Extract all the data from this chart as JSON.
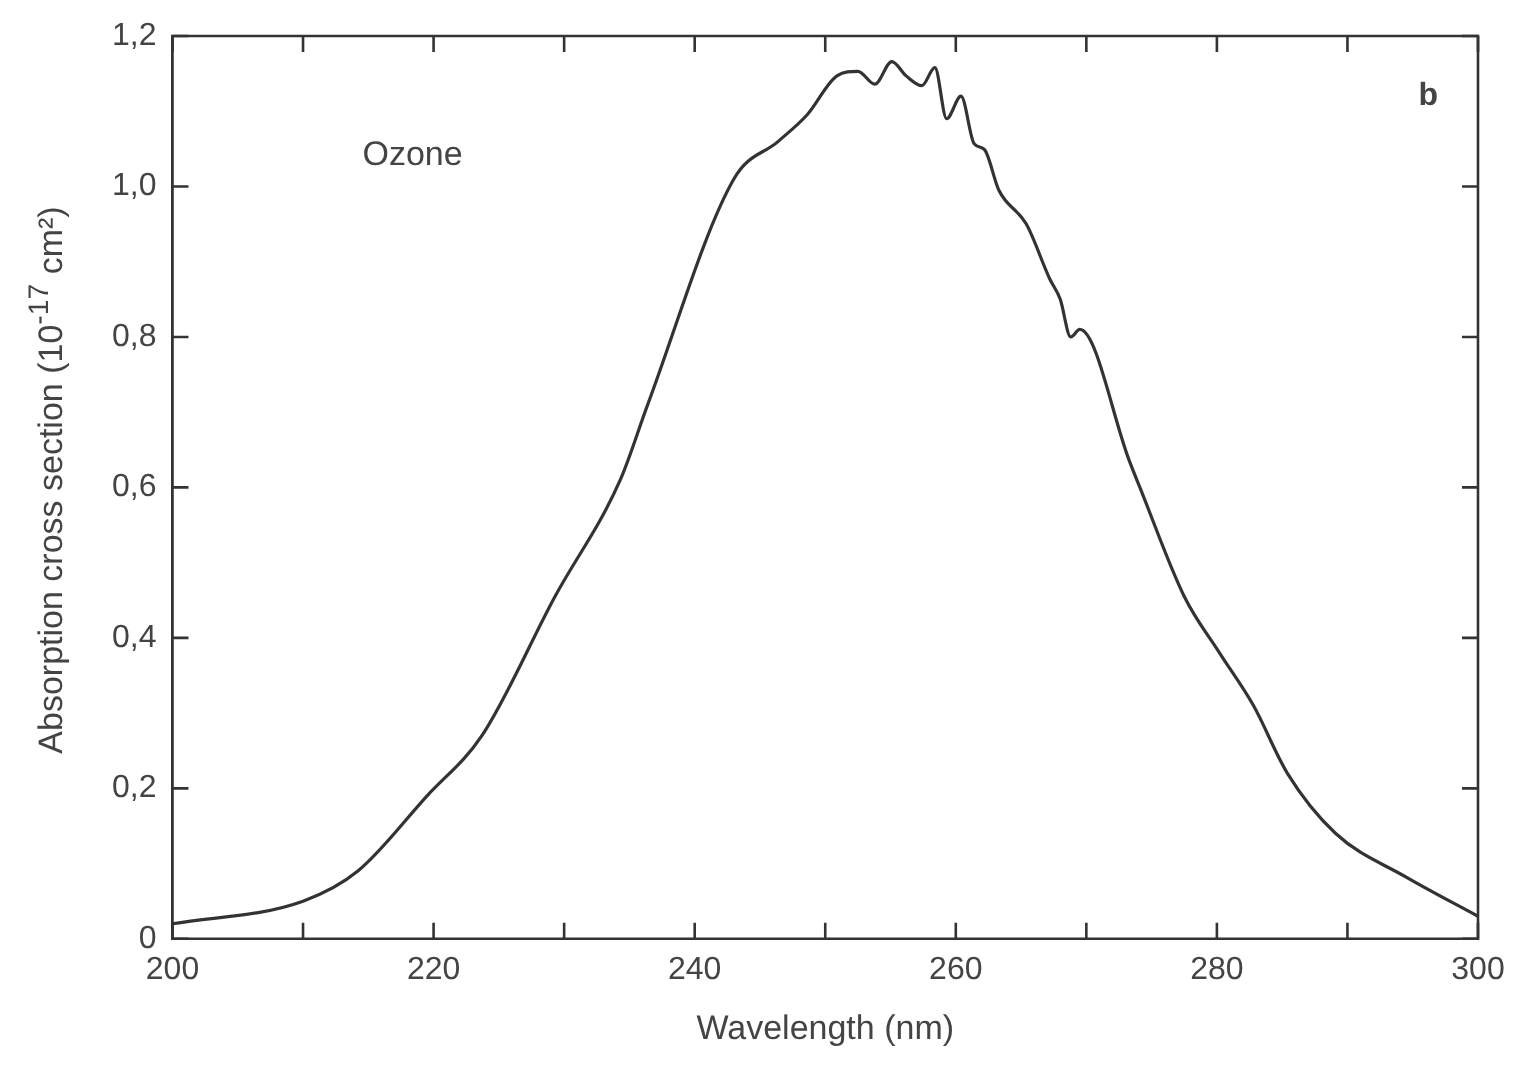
{
  "chart_data": {
    "type": "line",
    "xlabel": "Wavelength (nm)",
    "ylabel": "Absorption cross  section (10$^{-17}$ cm²)",
    "annotations": [
      "Ozone",
      "b"
    ],
    "series": [
      {
        "color": "#333333",
        "x": [
          200,
          210,
          214.2,
          219.5,
          223.7,
          229.3,
          234.3,
          236.4,
          243,
          246.4,
          248.6,
          250.9,
          252.5,
          253.8,
          255.1,
          256.2,
          257.4,
          258.4,
          259.3,
          260.4,
          261.4,
          262.2,
          263.3,
          265.4,
          267.2,
          268,
          268.8,
          269.5,
          273.3,
          274.1,
          277.5,
          280.2,
          282.8,
          285.4,
          289.1,
          294.5,
          300
        ],
        "values": [
          0.02,
          0.05,
          0.09,
          0.19,
          0.27,
          0.455,
          0.61,
          0.71,
          1.01,
          1.06,
          1.095,
          1.147,
          1.153,
          1.136,
          1.166,
          1.147,
          1.134,
          1.158,
          1.09,
          1.12,
          1.057,
          1.049,
          0.995,
          0.95,
          0.877,
          0.85,
          0.8,
          0.81,
          0.635,
          0.6,
          0.455,
          0.38,
          0.31,
          0.22,
          0.14,
          0.082,
          0.03
        ]
      }
    ],
    "xlim": [
      200,
      300
    ],
    "ylim": [
      0,
      1.2
    ],
    "xticks": [
      200,
      {
        "value": 210,
        "label": null
      },
      220,
      {
        "value": 230,
        "label": null
      },
      240,
      {
        "value": 250,
        "label": null
      },
      260,
      {
        "value": 270,
        "label": null
      },
      280,
      {
        "value": 290,
        "label": null
      },
      300
    ],
    "yticks": [
      0,
      {
        "value": 0.2,
        "label": "0,2"
      },
      {
        "value": 0.4,
        "label": "0,4"
      },
      {
        "value": 0.6,
        "label": "0,6"
      },
      {
        "value": 0.8,
        "label": "0,8"
      },
      {
        "value": 1.0,
        "label": "1,0"
      },
      {
        "value": 1.2,
        "label": "1,2"
      }
    ],
    "grid": false,
    "legend": false,
    "marker": "none",
    "line_style": "solid"
  }
}
